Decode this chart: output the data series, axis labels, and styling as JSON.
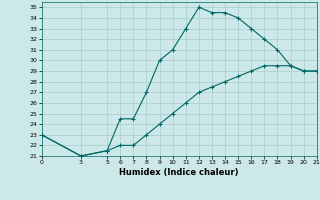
{
  "xlabel": "Humidex (Indice chaleur)",
  "ylabel": "",
  "background_color": "#cce8e8",
  "grid_color": "#aacccc",
  "line_color": "#006666",
  "xlim": [
    0,
    21
  ],
  "ylim": [
    21,
    35.5
  ],
  "xticks": [
    0,
    3,
    5,
    6,
    7,
    8,
    9,
    10,
    11,
    12,
    13,
    14,
    15,
    16,
    17,
    18,
    19,
    20,
    21
  ],
  "yticks": [
    21,
    22,
    23,
    24,
    25,
    26,
    27,
    28,
    29,
    30,
    31,
    32,
    33,
    34,
    35
  ],
  "curve1_x": [
    0,
    3,
    5,
    6,
    7,
    8,
    9,
    10,
    11,
    12,
    13,
    14,
    15,
    16,
    17,
    18,
    19,
    20,
    21
  ],
  "curve1_y": [
    23,
    21,
    21.5,
    24.5,
    24.5,
    27,
    30,
    31,
    33,
    35,
    34.5,
    34.5,
    34,
    33,
    32,
    31,
    29.5,
    29,
    29
  ],
  "curve2_x": [
    0,
    3,
    5,
    6,
    7,
    8,
    9,
    10,
    11,
    12,
    13,
    14,
    15,
    16,
    17,
    18,
    19,
    20,
    21
  ],
  "curve2_y": [
    23,
    21,
    21.5,
    22,
    22,
    23,
    24,
    25,
    26,
    27,
    27.5,
    28,
    28.5,
    29,
    29.5,
    29.5,
    29.5,
    29,
    29
  ]
}
